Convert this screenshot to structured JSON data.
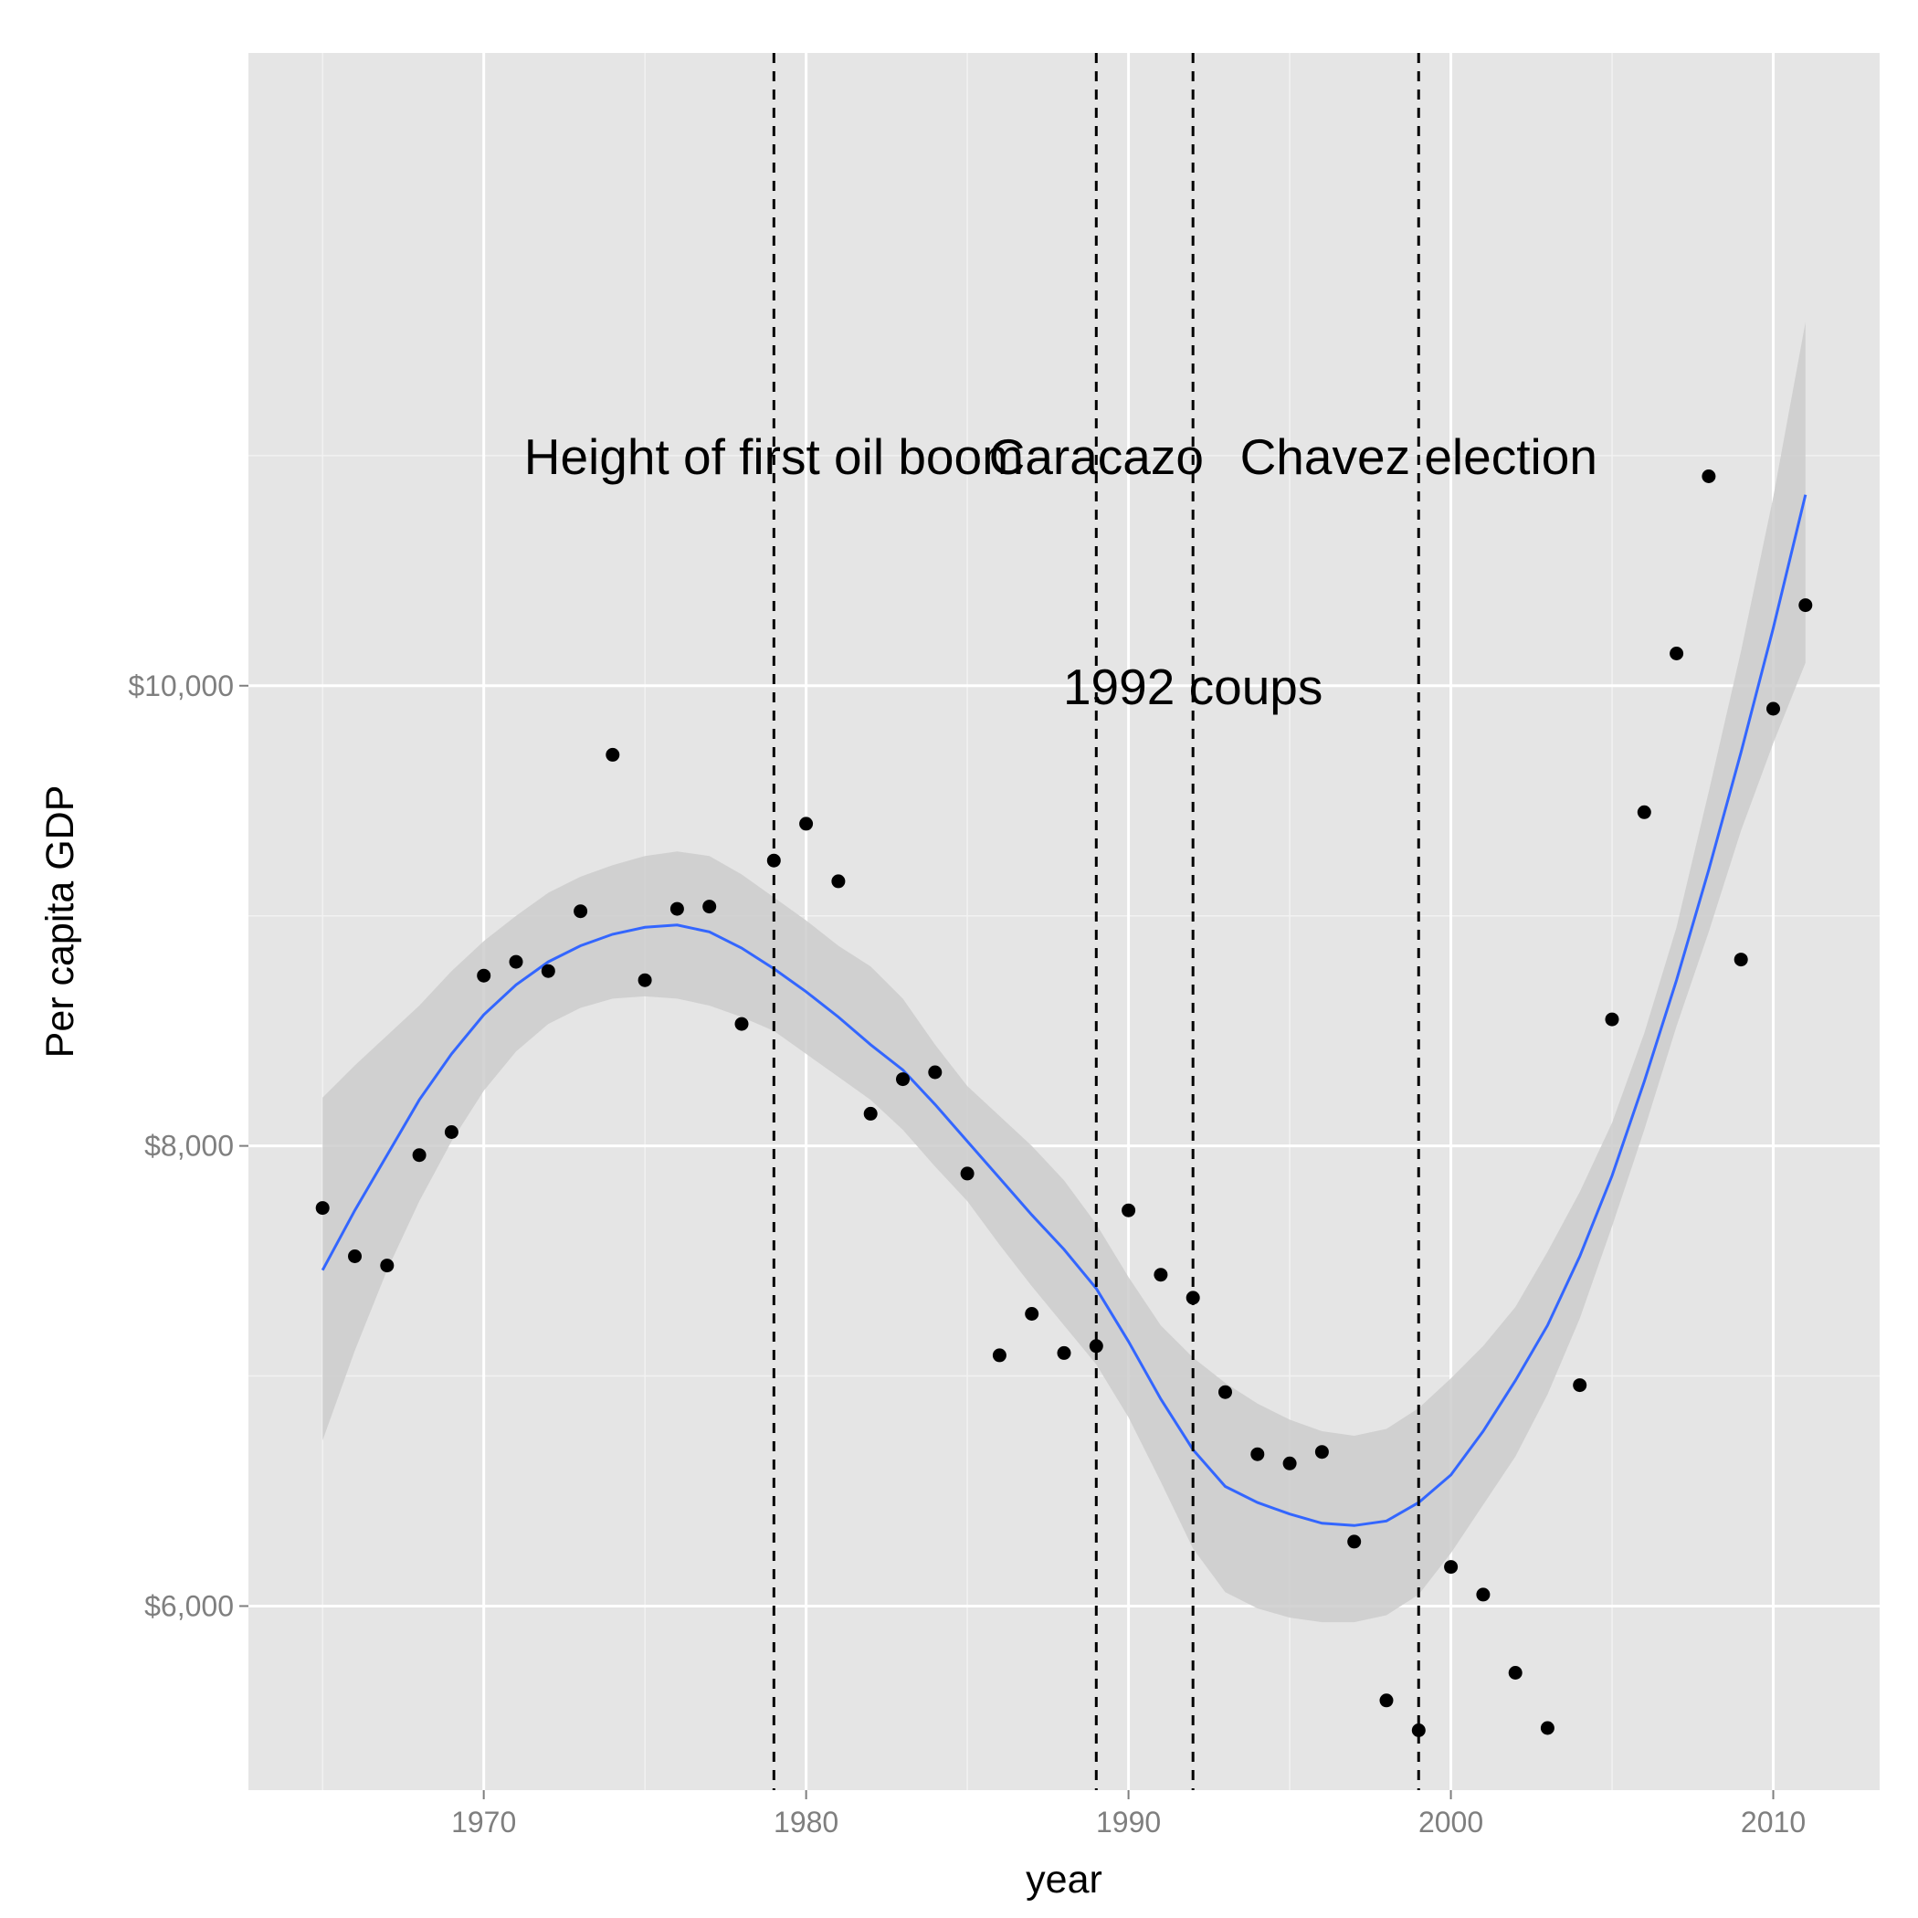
{
  "chart_data": {
    "type": "scatter",
    "title": "",
    "xlabel": "year",
    "ylabel": "Per capita GDP",
    "xlim": [
      1962.7,
      2013.3
    ],
    "ylim": [
      5200,
      12750
    ],
    "x_ticks": [
      1970,
      1980,
      1990,
      2000,
      2010
    ],
    "x_tick_labels": [
      "1970",
      "1980",
      "1990",
      "2000",
      "2010"
    ],
    "y_ticks": [
      6000,
      8000,
      10000
    ],
    "y_tick_labels": [
      "$6,000",
      "$8,000",
      "$10,000"
    ],
    "grid": true,
    "legend": "none",
    "colors": {
      "panel": "#e5e5e5",
      "grid_major": "#ffffff",
      "points": "#000000",
      "smooth_line": "#3366ff",
      "ribbon": "#cccccc",
      "event_lines": "#000000"
    },
    "points": [
      {
        "x": 1965,
        "y": 7730
      },
      {
        "x": 1966,
        "y": 7520
      },
      {
        "x": 1967,
        "y": 7480
      },
      {
        "x": 1968,
        "y": 7960
      },
      {
        "x": 1969,
        "y": 8060
      },
      {
        "x": 1970,
        "y": 8740
      },
      {
        "x": 1971,
        "y": 8800
      },
      {
        "x": 1972,
        "y": 8760
      },
      {
        "x": 1973,
        "y": 9020
      },
      {
        "x": 1974,
        "y": 9700
      },
      {
        "x": 1975,
        "y": 8720
      },
      {
        "x": 1976,
        "y": 9030
      },
      {
        "x": 1977,
        "y": 9040
      },
      {
        "x": 1978,
        "y": 8530
      },
      {
        "x": 1979,
        "y": 9240
      },
      {
        "x": 1980,
        "y": 9400
      },
      {
        "x": 1981,
        "y": 9150
      },
      {
        "x": 1982,
        "y": 8140
      },
      {
        "x": 1983,
        "y": 8290
      },
      {
        "x": 1984,
        "y": 8320
      },
      {
        "x": 1985,
        "y": 7880
      },
      {
        "x": 1986,
        "y": 7090
      },
      {
        "x": 1987,
        "y": 7270
      },
      {
        "x": 1988,
        "y": 7100
      },
      {
        "x": 1989,
        "y": 7130
      },
      {
        "x": 1990,
        "y": 7720
      },
      {
        "x": 1991,
        "y": 7440
      },
      {
        "x": 1992,
        "y": 7340
      },
      {
        "x": 1993,
        "y": 6930
      },
      {
        "x": 1994,
        "y": 6660
      },
      {
        "x": 1995,
        "y": 6620
      },
      {
        "x": 1996,
        "y": 6670
      },
      {
        "x": 1997,
        "y": 6280
      },
      {
        "x": 1998,
        "y": 5590
      },
      {
        "x": 1999,
        "y": 5460
      },
      {
        "x": 2000,
        "y": 6170
      },
      {
        "x": 2001,
        "y": 6050
      },
      {
        "x": 2002,
        "y": 5710
      },
      {
        "x": 2003,
        "y": 5470
      },
      {
        "x": 2004,
        "y": 6960
      },
      {
        "x": 2005,
        "y": 8550
      },
      {
        "x": 2006,
        "y": 9450
      },
      {
        "x": 2007,
        "y": 10140
      },
      {
        "x": 2008,
        "y": 10910
      },
      {
        "x": 2009,
        "y": 8810
      },
      {
        "x": 2010,
        "y": 9900
      },
      {
        "x": 2011,
        "y": 10350
      }
    ],
    "smooth": {
      "x": [
        1965,
        1966,
        1967,
        1968,
        1969,
        1970,
        1971,
        1972,
        1973,
        1974,
        1975,
        1976,
        1977,
        1978,
        1979,
        1980,
        1981,
        1982,
        1983,
        1984,
        1985,
        1986,
        1987,
        1988,
        1989,
        1990,
        1991,
        1992,
        1993,
        1994,
        1995,
        1996,
        1997,
        1998,
        1999,
        2000,
        2001,
        2002,
        2003,
        2004,
        2005,
        2006,
        2007,
        2008,
        2009,
        2010,
        2011
      ],
      "y": [
        7460,
        7720,
        7960,
        8200,
        8400,
        8570,
        8700,
        8800,
        8870,
        8920,
        8950,
        8960,
        8930,
        8860,
        8770,
        8670,
        8560,
        8440,
        8330,
        8180,
        8020,
        7860,
        7700,
        7550,
        7380,
        7150,
        6900,
        6680,
        6520,
        6450,
        6400,
        6360,
        6350,
        6370,
        6450,
        6570,
        6760,
        6980,
        7220,
        7520,
        7870,
        8280,
        8720,
        9200,
        9710,
        10250,
        10830
      ],
      "lower": [
        6720,
        7110,
        7460,
        7760,
        8020,
        8240,
        8410,
        8530,
        8600,
        8640,
        8650,
        8640,
        8610,
        8560,
        8500,
        8400,
        8300,
        8200,
        8070,
        7910,
        7760,
        7570,
        7390,
        7220,
        7050,
        6820,
        6540,
        6250,
        6060,
        5990,
        5950,
        5930,
        5930,
        5960,
        6050,
        6230,
        6440,
        6650,
        6920,
        7250,
        7650,
        8070,
        8520,
        8930,
        9370,
        9750,
        10100
      ],
      "upper": [
        8210,
        8350,
        8480,
        8610,
        8760,
        8890,
        9000,
        9100,
        9170,
        9220,
        9260,
        9280,
        9260,
        9180,
        9080,
        8980,
        8870,
        8780,
        8640,
        8440,
        8260,
        8130,
        8000,
        7850,
        7660,
        7430,
        7220,
        7080,
        6970,
        6880,
        6810,
        6760,
        6740,
        6770,
        6860,
        6990,
        7130,
        7300,
        7540,
        7800,
        8100,
        8490,
        8950,
        9540,
        10150,
        10820,
        11580
      ]
    },
    "event_lines": [
      {
        "x": 1979,
        "label": "Height of first oil boom",
        "label_y": 11000
      },
      {
        "x": 1989,
        "label": "Caracazo",
        "label_y": 11000
      },
      {
        "x": 1992,
        "label": "1992 coups",
        "label_y": 10000
      },
      {
        "x": 1999,
        "label": "Chavez election",
        "label_y": 11000
      }
    ]
  }
}
